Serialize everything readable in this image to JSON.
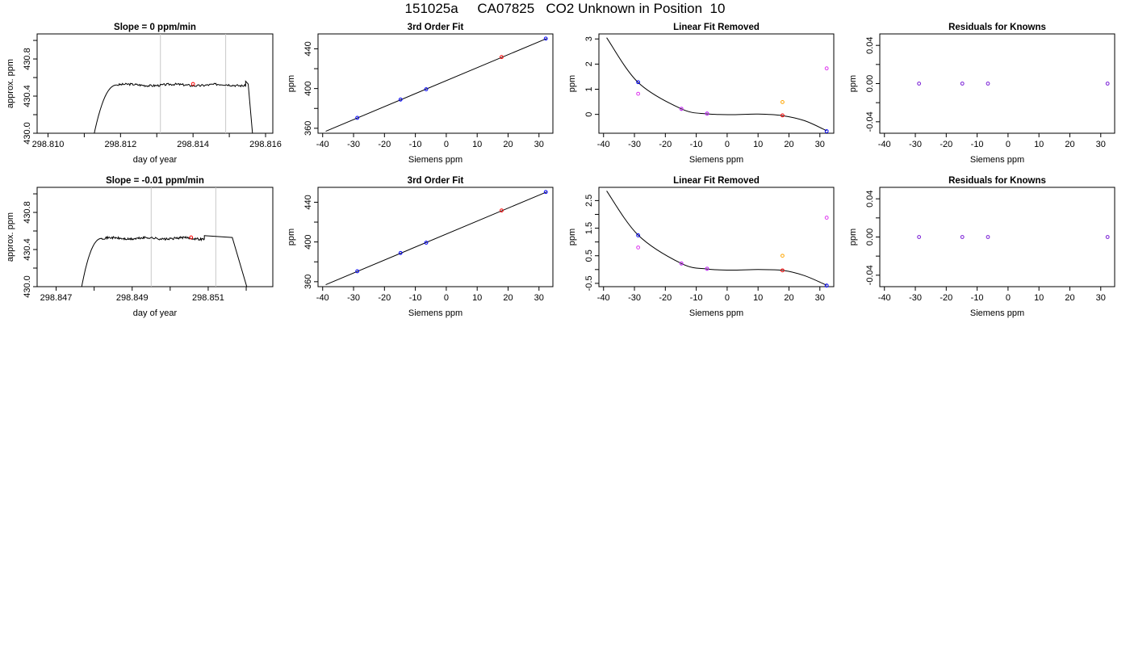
{
  "page_title": "151025a     CA07825   CO2 Unknown in Position  10",
  "colors": {
    "axis": "#000000",
    "trace": "#000000",
    "window_lines": "#c8c8c8",
    "known_points": "#0000ff",
    "unknown_point": "#ff0000",
    "orange_point": "#ffa500",
    "magenta_point": "#dd33ee",
    "residual_points": "#7a1fd6"
  },
  "chart_data": [
    {
      "id": "r1-trace",
      "row": 0,
      "col": 0,
      "type": "line",
      "title": "Slope =  0  ppm/min",
      "xlabel": "day of year",
      "ylabel": "approx. ppm",
      "xlim": [
        298.8097,
        298.8162
      ],
      "ylim": [
        430.0,
        431.07
      ],
      "xticks": [
        298.81,
        298.811,
        298.812,
        298.813,
        298.814,
        298.815,
        298.816
      ],
      "xticklabels": [
        "298.810",
        "",
        "298.812",
        "",
        "298.814",
        "",
        "298.816"
      ],
      "yticks": [
        430.0,
        430.2,
        430.4,
        430.6,
        430.8,
        431.0
      ],
      "yticklabels": [
        "430.0",
        "",
        "430.4",
        "",
        "430.8",
        ""
      ],
      "vlines": [
        298.8131,
        298.8149
      ],
      "trace": {
        "start_x": 298.81125,
        "rise_end_x": 298.8119,
        "end_x": 298.81555,
        "plateau": 430.52,
        "noise": 0.012,
        "bump_x": 298.81545,
        "bump_y": 430.56,
        "drop_x": 298.81565
      },
      "points": [
        {
          "x": 298.814,
          "y": 430.53,
          "color": "red"
        }
      ]
    },
    {
      "id": "r1-fit",
      "row": 0,
      "col": 1,
      "type": "scatter",
      "title": "3rd Order Fit",
      "xlabel": "Siemens ppm",
      "ylabel": "ppm",
      "xlim": [
        -41.5,
        34.5
      ],
      "ylim": [
        355,
        455
      ],
      "xticks": [
        -40,
        -30,
        -20,
        -10,
        0,
        10,
        20,
        30
      ],
      "xticklabels": [
        "-40",
        "-30",
        "-20",
        "-10",
        "0",
        "10",
        "20",
        "30"
      ],
      "yticks": [
        360,
        380,
        400,
        420,
        440
      ],
      "yticklabels": [
        "360",
        "",
        "400",
        "",
        "440"
      ],
      "fit_line": {
        "x": [
          -39,
          32.5
        ],
        "y": [
          357.0,
          450.4
        ]
      },
      "points": [
        {
          "x": -28.8,
          "y": 370.5,
          "color": "blue"
        },
        {
          "x": -14.8,
          "y": 388.9,
          "color": "blue"
        },
        {
          "x": -6.5,
          "y": 399.3,
          "color": "blue"
        },
        {
          "x": 17.9,
          "y": 431.7,
          "color": "red"
        },
        {
          "x": 32.2,
          "y": 450.3,
          "color": "blue"
        }
      ]
    },
    {
      "id": "r1-linear",
      "row": 0,
      "col": 2,
      "type": "scatter",
      "title": "Linear Fit Removed",
      "xlabel": "Siemens ppm",
      "ylabel": "ppm",
      "xlim": [
        -41.5,
        34.5
      ],
      "ylim": [
        -0.75,
        3.2
      ],
      "xticks": [
        -40,
        -30,
        -20,
        -10,
        0,
        10,
        20,
        30
      ],
      "xticklabels": [
        "-40",
        "-30",
        "-20",
        "-10",
        "0",
        "10",
        "20",
        "30"
      ],
      "yticks": [
        0,
        1,
        2,
        3
      ],
      "yticklabels": [
        "0",
        "1",
        "2",
        "3"
      ],
      "curve": {
        "x": [
          -39,
          -28.8,
          -14.8,
          -6.5,
          2,
          10,
          17.9,
          25,
          32.2
        ],
        "y": [
          3.05,
          1.27,
          0.22,
          0.02,
          -0.01,
          0.01,
          -0.05,
          -0.25,
          -0.65
        ]
      },
      "points": [
        {
          "x": -28.8,
          "y": 1.28,
          "color": "blue"
        },
        {
          "x": -28.8,
          "y": 0.82,
          "color": "magenta"
        },
        {
          "x": -14.8,
          "y": 0.22,
          "color": "blue"
        },
        {
          "x": -14.8,
          "y": 0.22,
          "color": "magenta"
        },
        {
          "x": -6.5,
          "y": 0.03,
          "color": "blue"
        },
        {
          "x": -6.5,
          "y": 0.03,
          "color": "magenta"
        },
        {
          "x": 17.9,
          "y": 0.49,
          "color": "orange"
        },
        {
          "x": 17.9,
          "y": -0.04,
          "color": "red"
        },
        {
          "x": 32.2,
          "y": 1.83,
          "color": "magenta"
        },
        {
          "x": 32.2,
          "y": -0.67,
          "color": "blue"
        }
      ]
    },
    {
      "id": "r1-resid",
      "row": 0,
      "col": 3,
      "type": "scatter",
      "title": "Residuals for Knowns",
      "xlabel": "Siemens ppm",
      "ylabel": "ppm",
      "xlim": [
        -41.5,
        34.5
      ],
      "ylim": [
        -0.052,
        0.052
      ],
      "xticks": [
        -40,
        -30,
        -20,
        -10,
        0,
        10,
        20,
        30
      ],
      "xticklabels": [
        "-40",
        "-30",
        "-20",
        "-10",
        "0",
        "10",
        "20",
        "30"
      ],
      "yticks": [
        -0.04,
        -0.02,
        0.0,
        0.02,
        0.04
      ],
      "yticklabels": [
        "-0.04",
        "",
        "0.00",
        "",
        "0.04"
      ],
      "points": [
        {
          "x": -28.8,
          "y": 0.0,
          "color": "resid"
        },
        {
          "x": -14.8,
          "y": 0.0,
          "color": "resid"
        },
        {
          "x": -6.5,
          "y": 0.0,
          "color": "resid"
        },
        {
          "x": 32.2,
          "y": 0.0,
          "color": "resid"
        }
      ]
    },
    {
      "id": "r2-trace",
      "row": 1,
      "col": 0,
      "type": "line",
      "title": "Slope =  -0.01  ppm/min",
      "xlabel": "day of year",
      "ylabel": "approx. ppm",
      "xlim": [
        298.8465,
        298.8527
      ],
      "ylim": [
        430.0,
        431.07
      ],
      "xticks": [
        298.847,
        298.848,
        298.849,
        298.85,
        298.851,
        298.852
      ],
      "xticklabels": [
        "298.847",
        "",
        "298.849",
        "",
        "298.851",
        ""
      ],
      "yticks": [
        430.0,
        430.2,
        430.4,
        430.6,
        430.8,
        431.0
      ],
      "yticklabels": [
        "430.0",
        "",
        "430.4",
        "",
        "430.8",
        ""
      ],
      "vlines": [
        298.8495,
        298.8512
      ],
      "trace": {
        "start_x": 298.84765,
        "rise_end_x": 298.8482,
        "end_x": 298.85195,
        "plateau": 430.52,
        "noise": 0.012,
        "bump_x": 298.8509,
        "bump_y": 430.55,
        "drop_x": 298.85205
      },
      "points": [
        {
          "x": 298.85055,
          "y": 430.53,
          "color": "red"
        }
      ]
    },
    {
      "id": "r2-fit",
      "row": 1,
      "col": 1,
      "type": "scatter",
      "title": "3rd Order Fit",
      "xlabel": "Siemens ppm",
      "ylabel": "ppm",
      "xlim": [
        -41.5,
        34.5
      ],
      "ylim": [
        355,
        455
      ],
      "xticks": [
        -40,
        -30,
        -20,
        -10,
        0,
        10,
        20,
        30
      ],
      "xticklabels": [
        "-40",
        "-30",
        "-20",
        "-10",
        "0",
        "10",
        "20",
        "30"
      ],
      "yticks": [
        360,
        380,
        400,
        420,
        440
      ],
      "yticklabels": [
        "360",
        "",
        "400",
        "",
        "440"
      ],
      "fit_line": {
        "x": [
          -39,
          32.5
        ],
        "y": [
          357.0,
          450.4
        ]
      },
      "points": [
        {
          "x": -28.8,
          "y": 370.5,
          "color": "blue"
        },
        {
          "x": -14.8,
          "y": 388.9,
          "color": "blue"
        },
        {
          "x": -6.5,
          "y": 399.3,
          "color": "blue"
        },
        {
          "x": 17.9,
          "y": 431.7,
          "color": "red"
        },
        {
          "x": 32.2,
          "y": 450.3,
          "color": "blue"
        }
      ]
    },
    {
      "id": "r2-linear",
      "row": 1,
      "col": 2,
      "type": "scatter",
      "title": "Linear Fit Removed",
      "xlabel": "Siemens ppm",
      "ylabel": "ppm",
      "xlim": [
        -41.5,
        34.5
      ],
      "ylim": [
        -0.62,
        2.98
      ],
      "xticks": [
        -40,
        -30,
        -20,
        -10,
        0,
        10,
        20,
        30
      ],
      "xticklabels": [
        "-40",
        "-30",
        "-20",
        "-10",
        "0",
        "10",
        "20",
        "30"
      ],
      "yticks": [
        -0.5,
        0.0,
        0.5,
        1.0,
        1.5,
        2.0,
        2.5
      ],
      "yticklabels": [
        "-0.5",
        "",
        "0.5",
        "",
        "1.5",
        "",
        "2.5"
      ],
      "curve": {
        "x": [
          -39,
          -28.8,
          -14.8,
          -6.5,
          2,
          10,
          17.9,
          25,
          32.2
        ],
        "y": [
          2.85,
          1.25,
          0.22,
          0.02,
          -0.02,
          0.0,
          -0.03,
          -0.22,
          -0.57
        ]
      },
      "points": [
        {
          "x": -28.8,
          "y": 1.24,
          "color": "blue"
        },
        {
          "x": -28.8,
          "y": 0.8,
          "color": "magenta"
        },
        {
          "x": -14.8,
          "y": 0.22,
          "color": "blue"
        },
        {
          "x": -14.8,
          "y": 0.22,
          "color": "magenta"
        },
        {
          "x": -6.5,
          "y": 0.03,
          "color": "blue"
        },
        {
          "x": -6.5,
          "y": 0.03,
          "color": "magenta"
        },
        {
          "x": 17.9,
          "y": 0.5,
          "color": "orange"
        },
        {
          "x": 17.9,
          "y": -0.03,
          "color": "red"
        },
        {
          "x": 32.2,
          "y": 1.88,
          "color": "magenta"
        },
        {
          "x": 32.2,
          "y": -0.58,
          "color": "blue"
        }
      ]
    },
    {
      "id": "r2-resid",
      "row": 1,
      "col": 3,
      "type": "scatter",
      "title": "Residuals for Knowns",
      "xlabel": "Siemens ppm",
      "ylabel": "ppm",
      "xlim": [
        -41.5,
        34.5
      ],
      "ylim": [
        -0.052,
        0.052
      ],
      "xticks": [
        -40,
        -30,
        -20,
        -10,
        0,
        10,
        20,
        30
      ],
      "xticklabels": [
        "-40",
        "-30",
        "-20",
        "-10",
        "0",
        "10",
        "20",
        "30"
      ],
      "yticks": [
        -0.04,
        -0.02,
        0.0,
        0.02,
        0.04
      ],
      "yticklabels": [
        "-0.04",
        "",
        "0.00",
        "",
        "0.04"
      ],
      "points": [
        {
          "x": -28.8,
          "y": 0.0,
          "color": "resid"
        },
        {
          "x": -14.8,
          "y": 0.0,
          "color": "resid"
        },
        {
          "x": -6.5,
          "y": 0.0,
          "color": "resid"
        },
        {
          "x": 32.2,
          "y": 0.0,
          "color": "resid"
        }
      ]
    }
  ]
}
